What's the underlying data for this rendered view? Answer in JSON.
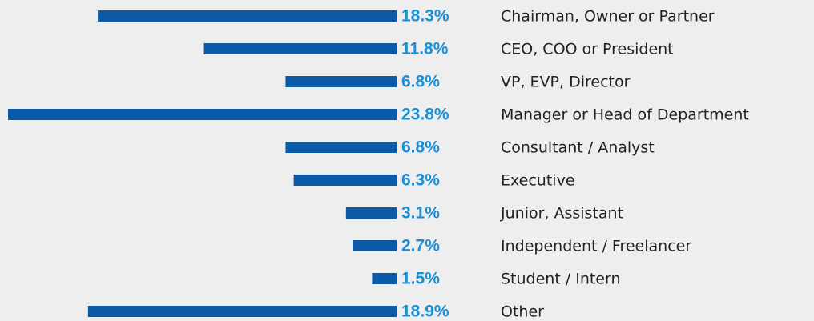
{
  "chart_data": {
    "type": "hbar",
    "categories": [
      "Chairman, Owner or Partner",
      "CEO, COO or President",
      "VP, EVP, Director",
      "Manager or Head of Department",
      "Consultant / Analyst",
      "Executive",
      "Junior, Assistant",
      "Independent / Freelancer",
      "Student / Intern",
      "Other"
    ],
    "values": [
      18.3,
      11.8,
      6.8,
      23.8,
      6.8,
      6.3,
      3.1,
      2.7,
      1.5,
      18.9
    ],
    "value_labels": [
      "18.3%",
      "11.8%",
      "6.8%",
      "23.8%",
      "6.8%",
      "6.3%",
      "3.1%",
      "2.7%",
      "1.5%",
      "18.9%"
    ],
    "color": "#0a5aa8",
    "label_color": "#1a8fd6"
  }
}
